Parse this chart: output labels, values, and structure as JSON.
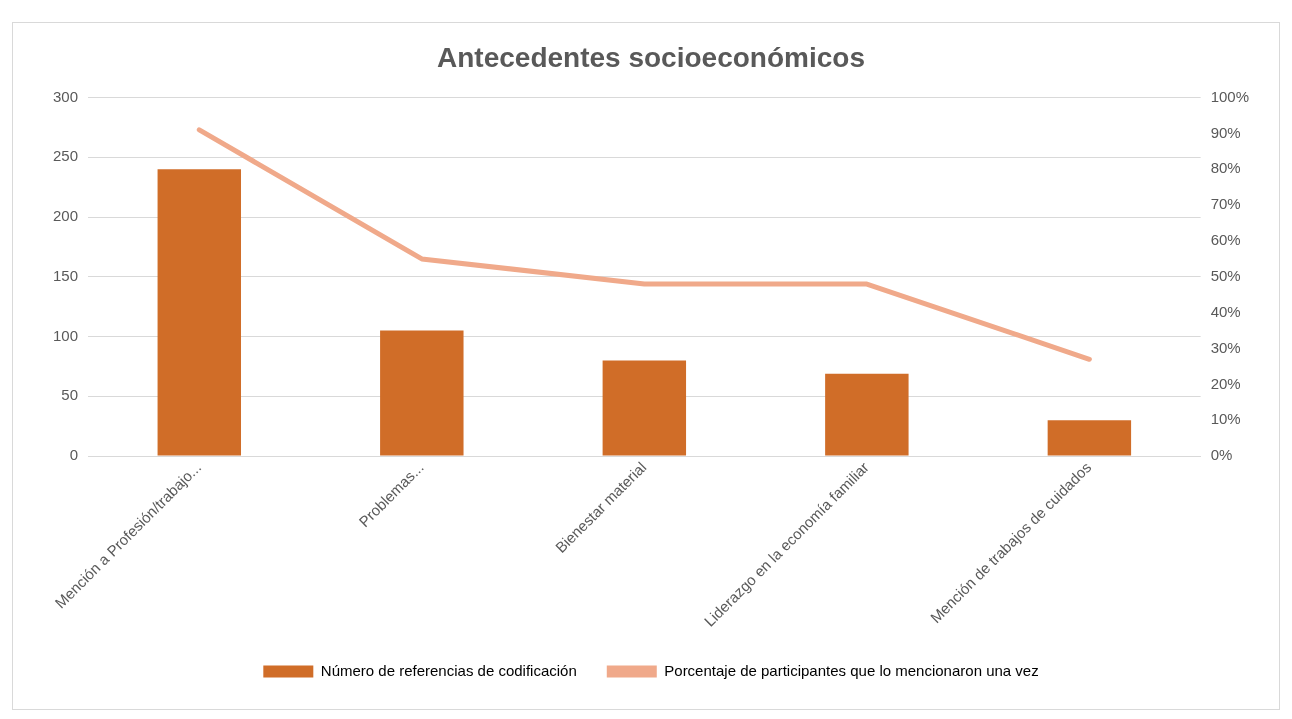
{
  "chart_data": {
    "type": "bar",
    "title": "Antecedentes socioeconómicos",
    "categories": [
      "Mención a Profesión/trabajo...",
      "Problemas...",
      "Bienestar material",
      "Liderazgo en la economía familiar",
      "Mención de trabajos de cuidados"
    ],
    "series": [
      {
        "name": "Número de referencias de codificación",
        "color": "#d06d28",
        "values": [
          240,
          105,
          80,
          69,
          30
        ]
      },
      {
        "name": "Porcentaje de participantes que lo mencionaron una vez",
        "type": "line",
        "axis": "y2",
        "color": "#f0a98a",
        "values": [
          91,
          55,
          48,
          48,
          27
        ]
      }
    ],
    "ylim": [
      0,
      300
    ],
    "yticks": [
      0,
      50,
      100,
      150,
      200,
      250,
      300
    ],
    "y2lim": [
      0,
      100
    ],
    "y2ticks": [
      {
        "value": 0,
        "label": "0%"
      },
      {
        "value": 10,
        "label": "10%"
      },
      {
        "value": 20,
        "label": "20%"
      },
      {
        "value": 30,
        "label": "30%"
      },
      {
        "value": 40,
        "label": "40%"
      },
      {
        "value": 50,
        "label": "50%"
      },
      {
        "value": 60,
        "label": "60%"
      },
      {
        "value": 70,
        "label": "70%"
      },
      {
        "value": 80,
        "label": "80%"
      },
      {
        "value": 90,
        "label": "90%"
      },
      {
        "value": 100,
        "label": "100%"
      }
    ],
    "grid": "y",
    "legend": "bottom",
    "marker": "none",
    "line_style": "solid"
  }
}
